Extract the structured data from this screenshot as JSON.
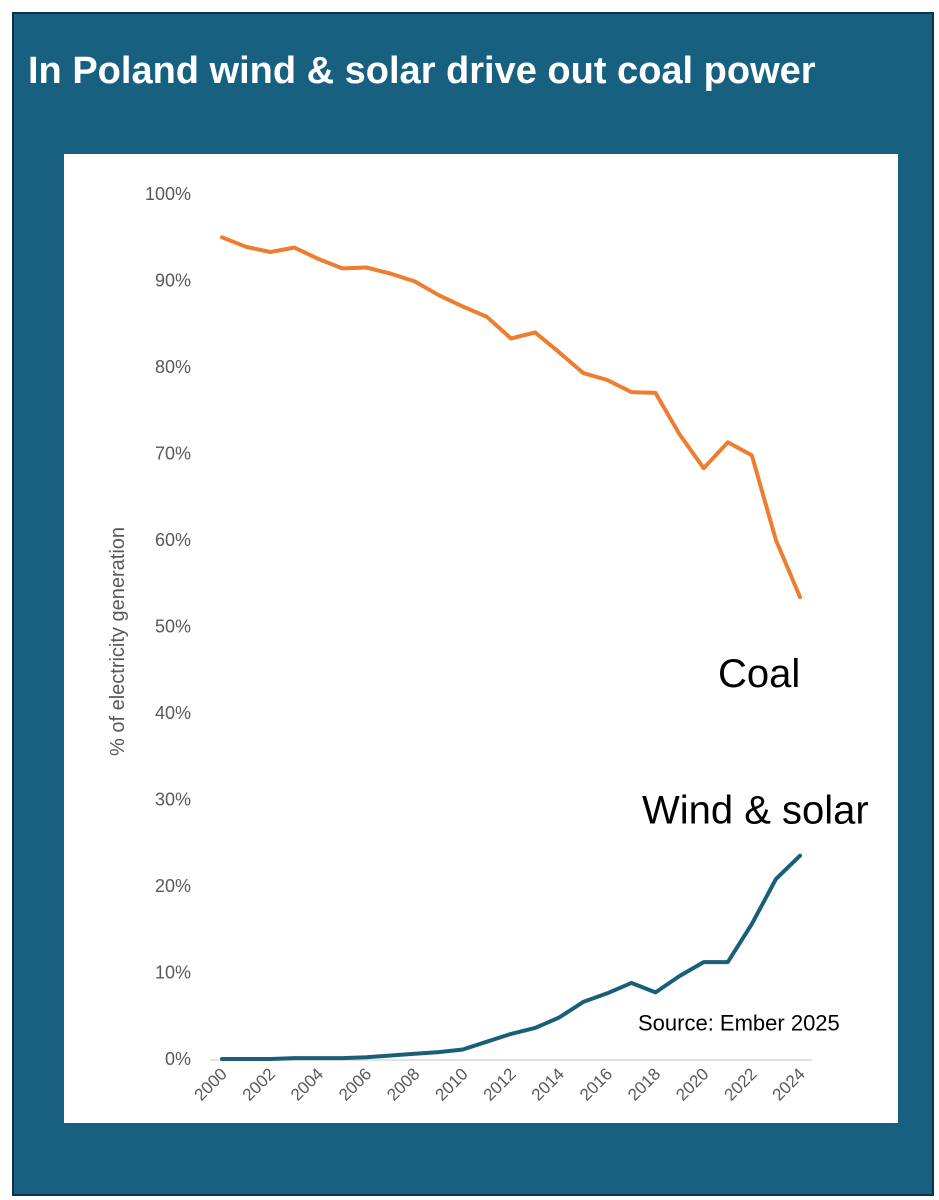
{
  "chart_data": {
    "type": "line",
    "title": "In Poland wind & solar drive out coal power",
    "ylabel": "% of electricity generation",
    "xlabel": "",
    "ylim": [
      0,
      100
    ],
    "yticks": [
      0,
      10,
      20,
      30,
      40,
      50,
      60,
      70,
      80,
      90,
      100
    ],
    "ytick_labels": [
      "0%",
      "10%",
      "20%",
      "30%",
      "40%",
      "50%",
      "60%",
      "70%",
      "80%",
      "90%",
      "100%"
    ],
    "x": [
      2000,
      2001,
      2002,
      2003,
      2004,
      2005,
      2006,
      2007,
      2008,
      2009,
      2010,
      2011,
      2012,
      2013,
      2014,
      2015,
      2016,
      2017,
      2018,
      2019,
      2020,
      2021,
      2022,
      2023,
      2024
    ],
    "xtick_labels": [
      "2000",
      "2002",
      "2004",
      "2006",
      "2008",
      "2010",
      "2012",
      "2014",
      "2016",
      "2018",
      "2020",
      "2022",
      "2024"
    ],
    "grid": false,
    "series": [
      {
        "name": "Coal",
        "color": "#ed7d31",
        "values": [
          95.0,
          93.9,
          93.3,
          93.8,
          92.5,
          91.4,
          91.5,
          90.8,
          89.9,
          88.3,
          87.0,
          85.8,
          83.3,
          84.0,
          81.7,
          79.3,
          78.5,
          77.1,
          77.0,
          72.2,
          68.3,
          71.3,
          69.8,
          60.0,
          53.4
        ]
      },
      {
        "name": "Wind & solar",
        "color": "#1a5f7a",
        "values": [
          0.0,
          0.0,
          0.0,
          0.1,
          0.1,
          0.1,
          0.2,
          0.4,
          0.6,
          0.8,
          1.1,
          2.0,
          2.9,
          3.6,
          4.8,
          6.6,
          7.6,
          8.8,
          7.7,
          9.6,
          11.2,
          11.2,
          15.6,
          20.8,
          23.5
        ]
      }
    ],
    "annotations": {
      "source": "Source: Ember 2025"
    }
  }
}
